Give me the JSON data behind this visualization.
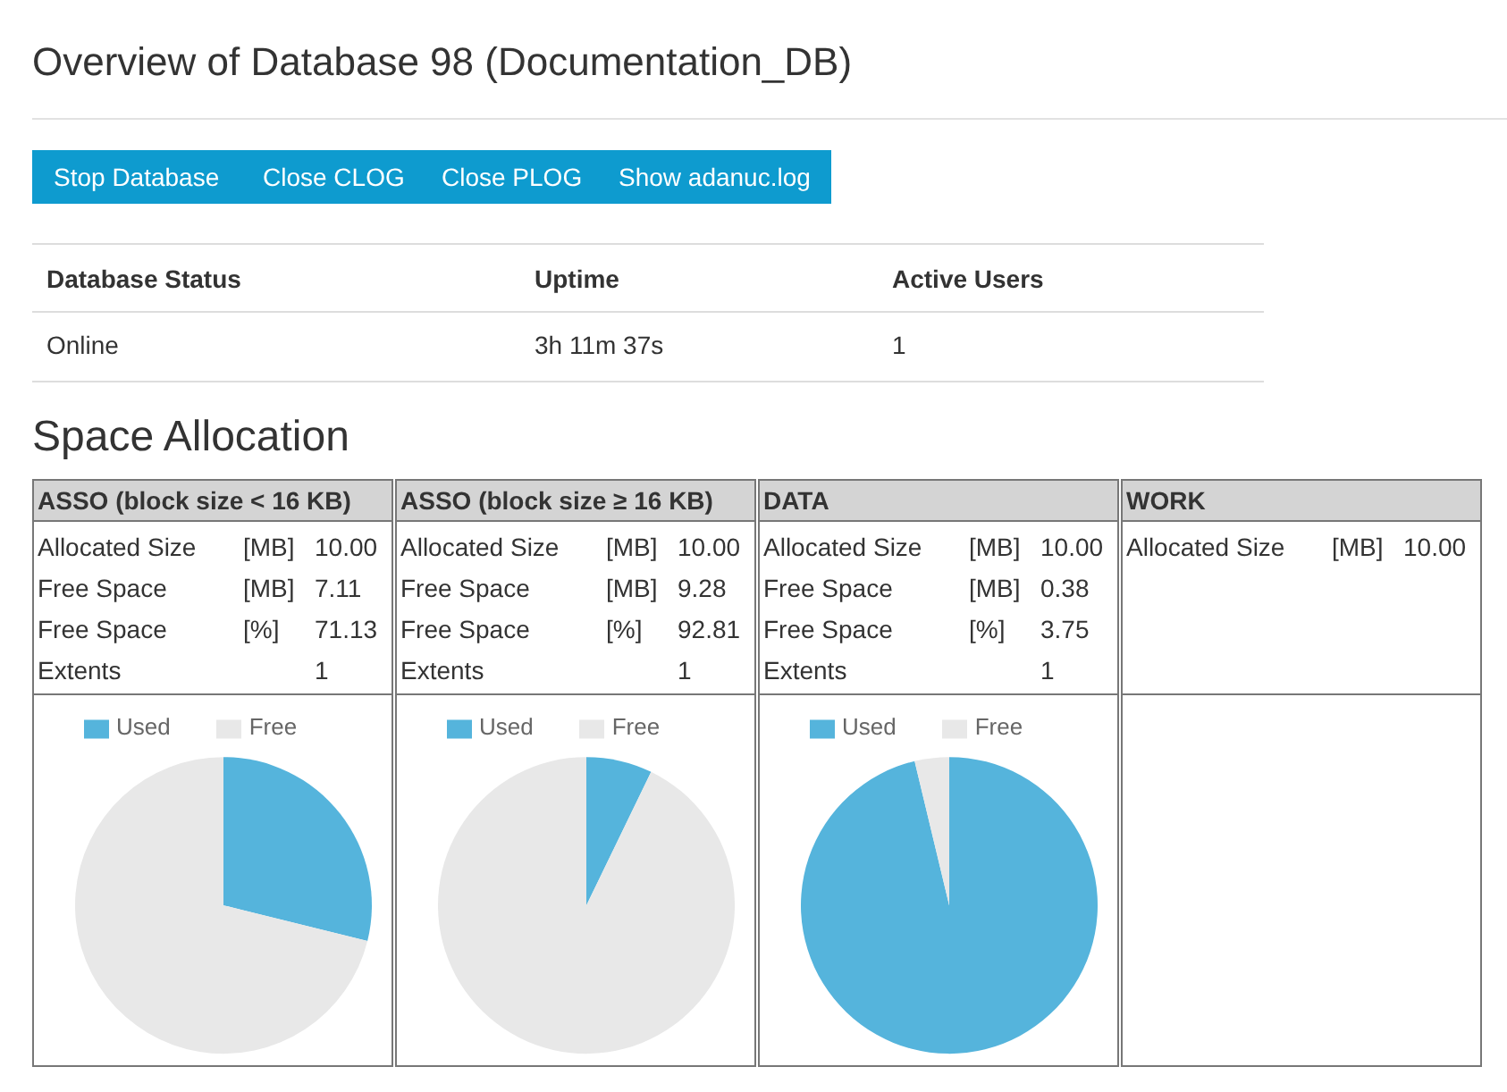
{
  "chart_data": [
    {
      "type": "other",
      "title": "Overview of Database 98 (Documentation_DB)",
      "annotations": [
        "Stop Database",
        "Close CLOG",
        "Close PLOG",
        "Show adanuc.log"
      ]
    },
    {
      "type": "other",
      "categories": [
        "Database Status",
        "Uptime",
        "Active Users"
      ],
      "annotations": [
        "Online",
        "3h 11m 37s",
        "1"
      ]
    },
    {
      "type": "other",
      "title": "Space Allocation"
    },
    {
      "type": "pie",
      "title": "ASSO (block size < 16 KB)",
      "annotations": [
        "Allocated Size",
        "[MB] 10.00",
        "Free Space",
        "[MB] 7.11",
        "Free Space",
        "[%] 71.13",
        "Extents",
        "1"
      ],
      "categories": [
        "Used",
        "Free"
      ],
      "values": [
        28.87,
        71.13
      ],
      "colors": [
        "#55b4dc",
        "#e8e8e8"
      ],
      "legend": "top"
    },
    {
      "type": "pie",
      "title": "ASSO (block size ≥ 16 KB)",
      "annotations": [
        "Allocated Size",
        "[MB] 10.00",
        "Free Space",
        "[MB] 9.28",
        "Free Space",
        "[%] 92.81",
        "Extents",
        "1"
      ],
      "categories": [
        "Used",
        "Free"
      ],
      "values": [
        7.19,
        92.81
      ],
      "colors": [
        "#55b4dc",
        "#e8e8e8"
      ],
      "legend": "top"
    },
    {
      "type": "pie",
      "title": "DATA",
      "annotations": [
        "Allocated Size",
        "[MB] 10.00",
        "Free Space",
        "[MB] 0.38",
        "Free Space",
        "[%] 3.75",
        "Extents",
        "1"
      ],
      "categories": [
        "Used",
        "Free"
      ],
      "values": [
        96.25,
        3.75
      ],
      "colors": [
        "#55b4dc",
        "#e8e8e8"
      ],
      "legend": "top"
    },
    {
      "type": "other",
      "title": "WORK",
      "annotations": [
        "Allocated Size",
        "[MB] 10.00"
      ]
    }
  ]
}
